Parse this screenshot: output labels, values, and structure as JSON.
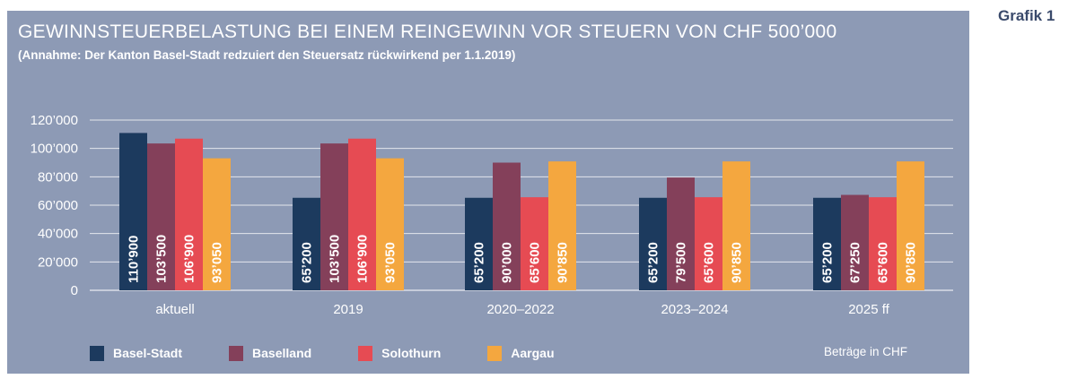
{
  "grafik_label": "Grafik 1",
  "note": "Beträge in CHF",
  "colors": {
    "panel": "#8d9ab5",
    "Basel-Stadt": "#1c3a5e",
    "Baselland": "#84405a",
    "Solothurn": "#e64b53",
    "Aargau": "#f4a73f"
  },
  "chart_data": {
    "type": "bar",
    "title": "GEWINNSTEUERBELASTUNG BEI EINEM REINGEWINN VOR STEUERN VON CHF 500’000",
    "subtitle": "(Annahme: Der Kanton Basel-Stadt redzuiert den Steuersatz rückwirkend per 1.1.2019)",
    "categories": [
      "aktuell",
      "2019",
      "2020–2022",
      "2023–2024",
      "2025 ff"
    ],
    "ylim": [
      0,
      120000
    ],
    "yticks": [
      "0",
      "20’000",
      "40’000",
      "60’000",
      "80’000",
      "100’000",
      "120’000"
    ],
    "grid": true,
    "legend_position": "bottom",
    "series": [
      {
        "name": "Basel-Stadt",
        "values": [
          110900,
          65200,
          65200,
          65200,
          65200
        ],
        "labels": [
          "110’900",
          "65’200",
          "65’200",
          "65’200",
          "65’200"
        ]
      },
      {
        "name": "Baselland",
        "values": [
          103500,
          103500,
          90000,
          79500,
          67250
        ],
        "labels": [
          "103’500",
          "103’500",
          "90’000",
          "79’500",
          "67’250"
        ]
      },
      {
        "name": "Solothurn",
        "values": [
          106900,
          106900,
          65600,
          65600,
          65600
        ],
        "labels": [
          "106’900",
          "106’900",
          "65’600",
          "65’600",
          "65’600"
        ]
      },
      {
        "name": "Aargau",
        "values": [
          93050,
          93050,
          90850,
          90850,
          90850
        ],
        "labels": [
          "93’050",
          "93’050",
          "90’850",
          "90’850",
          "90’850"
        ]
      }
    ]
  }
}
